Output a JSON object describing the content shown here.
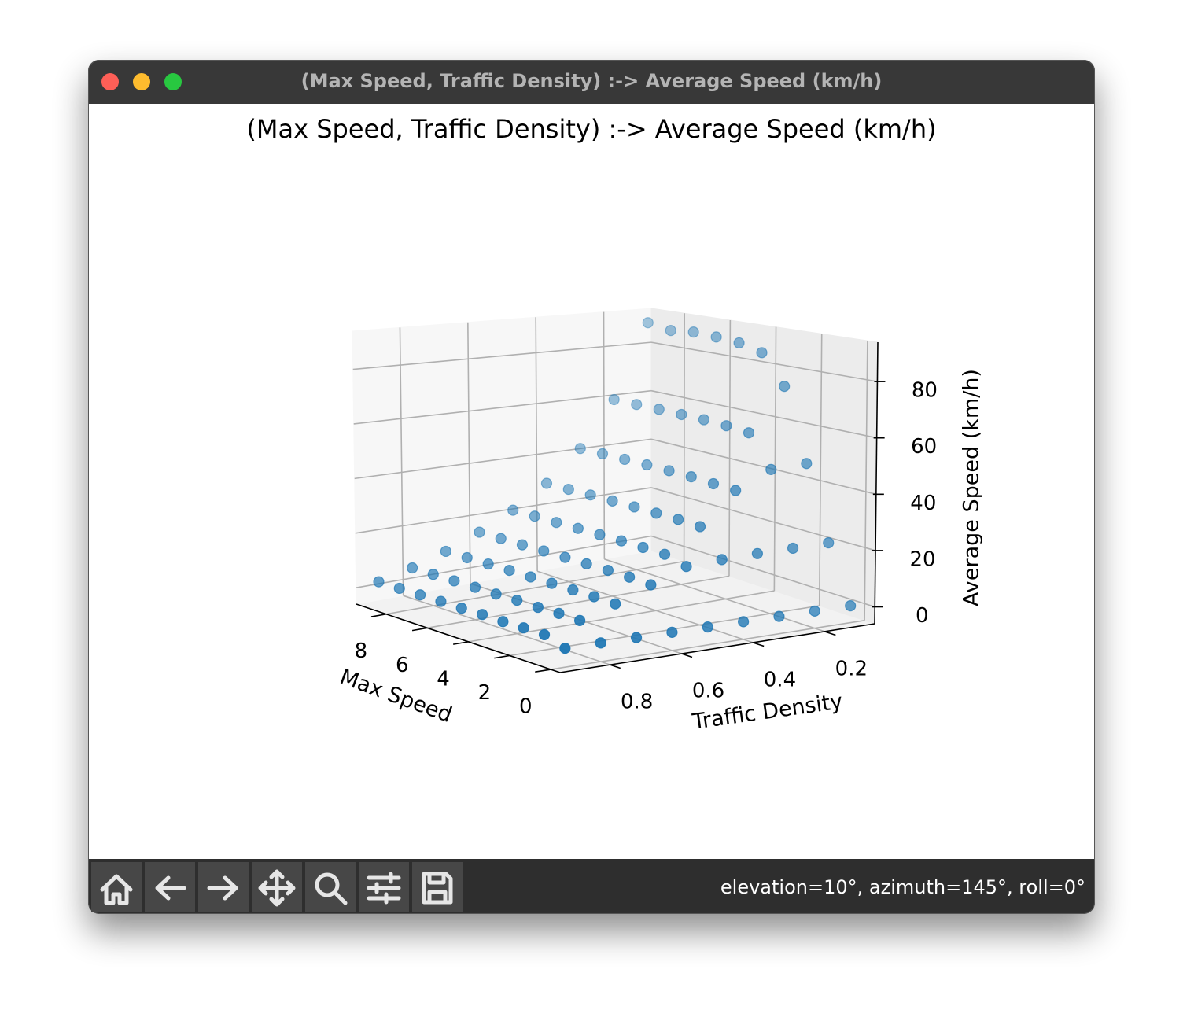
{
  "window": {
    "title": "(Max Speed, Traffic Density) :-> Average Speed (km/h)",
    "status": "elevation=10°, azimuth=145°, roll=0°"
  },
  "chart_data": {
    "type": "scatter3d",
    "title": "(Max Speed, Traffic Density) :-> Average Speed (km/h)",
    "xlabel": "Max Speed",
    "ylabel": "Traffic Density",
    "zlabel": "Average Speed (km/h)",
    "xlim": [
      -0.45,
      9.45
    ],
    "ylim": [
      0.06,
      0.94
    ],
    "zlim": [
      -6,
      94
    ],
    "xticks": [
      0,
      2,
      4,
      6,
      8
    ],
    "yticks": [
      0.2,
      0.4,
      0.6,
      0.8
    ],
    "zticks": [
      0,
      20,
      40,
      60,
      80
    ],
    "grid": true,
    "series": [
      {
        "color": "#1f77b4",
        "x": [
          0,
          0,
          0,
          0,
          0,
          0,
          0,
          0,
          0,
          1,
          1,
          1,
          1,
          1,
          1,
          1,
          1,
          1,
          2,
          2,
          2,
          2,
          2,
          2,
          2,
          2,
          2,
          3,
          3,
          3,
          3,
          3,
          3,
          3,
          3,
          3,
          4,
          4,
          4,
          4,
          4,
          4,
          4,
          4,
          4,
          5,
          5,
          5,
          5,
          5,
          5,
          5,
          5,
          5,
          6,
          6,
          6,
          6,
          6,
          6,
          6,
          6,
          6,
          7,
          7,
          7,
          7,
          7,
          7,
          7,
          7,
          7,
          8,
          8,
          8,
          8,
          8,
          8,
          8,
          8,
          8,
          9,
          9,
          9,
          9,
          9,
          9,
          9,
          9,
          9
        ],
        "y": [
          0.1,
          0.2,
          0.3,
          0.4,
          0.5,
          0.6,
          0.7,
          0.8,
          0.9,
          0.1,
          0.2,
          0.3,
          0.4,
          0.5,
          0.6,
          0.7,
          0.8,
          0.9,
          0.1,
          0.2,
          0.3,
          0.4,
          0.5,
          0.6,
          0.7,
          0.8,
          0.9,
          0.1,
          0.2,
          0.3,
          0.4,
          0.5,
          0.6,
          0.7,
          0.8,
          0.9,
          0.1,
          0.2,
          0.3,
          0.4,
          0.5,
          0.6,
          0.7,
          0.8,
          0.9,
          0.1,
          0.2,
          0.3,
          0.4,
          0.5,
          0.6,
          0.7,
          0.8,
          0.9,
          0.1,
          0.2,
          0.3,
          0.4,
          0.5,
          0.6,
          0.7,
          0.8,
          0.9,
          0.1,
          0.2,
          0.3,
          0.4,
          0.5,
          0.6,
          0.7,
          0.8,
          0.9,
          0.1,
          0.2,
          0.3,
          0.4,
          0.5,
          0.6,
          0.7,
          0.8,
          0.9,
          0.1,
          0.2,
          0.3,
          0.4,
          0.5,
          0.6,
          0.7,
          0.8,
          0.9
        ],
        "z": [
          0,
          0,
          0,
          0,
          0,
          0,
          0,
          0,
          0,
          20.1,
          19.8,
          19.5,
          19.0,
          18.2,
          13.6,
          8.9,
          5.1,
          2.2,
          46.8,
          45.9,
          39.7,
          28.4,
          20.3,
          14.1,
          9.2,
          5.3,
          2.3,
          73.5,
          57.4,
          40.2,
          28.9,
          20.6,
          14.3,
          9.3,
          5.2,
          2.2,
          84.6,
          58.3,
          40.8,
          29.1,
          20.8,
          14.4,
          9.4,
          5.4,
          2.4,
          86.9,
          58.8,
          41.1,
          29.3,
          20.9,
          14.5,
          9.4,
          5.3,
          2.3,
          87.8,
          59.0,
          41.3,
          29.4,
          21.0,
          14.6,
          9.5,
          5.4,
          2.4,
          88.3,
          59.2,
          41.4,
          29.5,
          21.0,
          14.6,
          9.5,
          5.4,
          2.4,
          87.5,
          59.3,
          41.5,
          29.5,
          21.1,
          14.6,
          9.5,
          5.4,
          2.4,
          89.2,
          59.4,
          41.5,
          29.6,
          21.1,
          14.7,
          9.5,
          5.4,
          2.4
        ]
      }
    ]
  }
}
